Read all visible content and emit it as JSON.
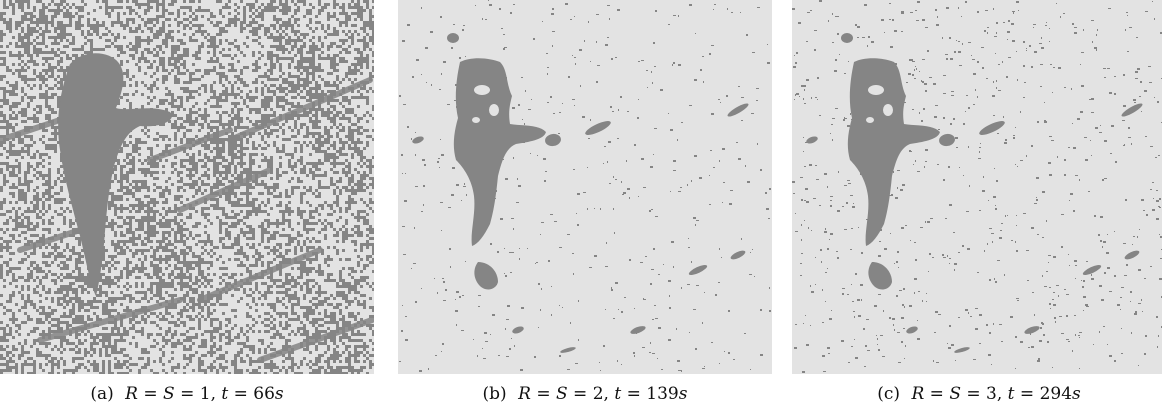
{
  "colors": {
    "background": "#e3e3e3",
    "foreground": "#858585"
  },
  "panels": [
    {
      "tag": "(a)",
      "caption": "R = S = 1, t = 66s",
      "r": "R",
      "s": "S",
      "rs_value": "1",
      "t": "t",
      "t_value": "66",
      "unit": "s",
      "noise_level": 0.42
    },
    {
      "tag": "(b)",
      "caption": "R = S = 2, t = 139s",
      "r": "R",
      "s": "S",
      "rs_value": "2",
      "t": "t",
      "t_value": "139",
      "unit": "s",
      "noise_level": 0.03
    },
    {
      "tag": "(c)",
      "caption": "R = S = 3, t = 294s",
      "r": "R",
      "s": "S",
      "rs_value": "3",
      "t": "t",
      "t_value": "294",
      "unit": "s",
      "noise_level": 0.05
    }
  ]
}
